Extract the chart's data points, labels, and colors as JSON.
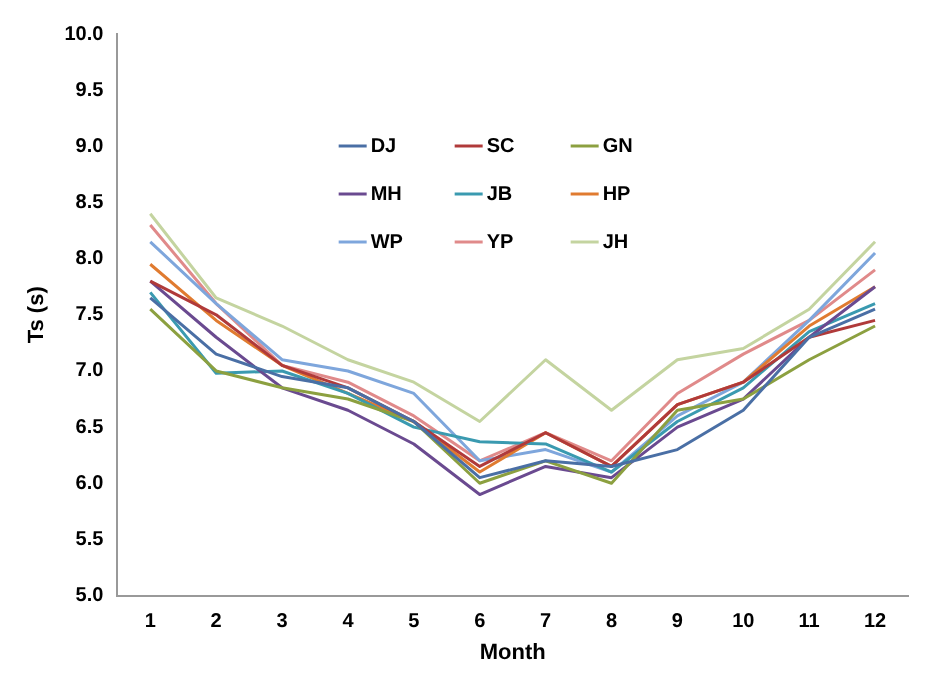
{
  "chart_data": {
    "type": "line",
    "xlabel": "Month",
    "ylabel": "Ts (s)",
    "x": [
      1,
      2,
      3,
      4,
      5,
      6,
      7,
      8,
      9,
      10,
      11,
      12
    ],
    "xlim": [
      0.5,
      12.5
    ],
    "xticks": [
      1,
      2,
      3,
      4,
      5,
      6,
      7,
      8,
      9,
      10,
      11,
      12
    ],
    "ylim": [
      5,
      10
    ],
    "yticks": [
      {
        "value": 5,
        "label": "5.0"
      },
      {
        "value": 5.5,
        "label": "5.5"
      },
      {
        "value": 6,
        "label": "6.0"
      },
      {
        "value": 6.5,
        "label": "6.5"
      },
      {
        "value": 7,
        "label": "7.0"
      },
      {
        "value": 7.5,
        "label": "7.5"
      },
      {
        "value": 8,
        "label": "8.0"
      },
      {
        "value": 8.5,
        "label": "8.5"
      },
      {
        "value": 9,
        "label": "9.0"
      },
      {
        "value": 9.5,
        "label": "9.5"
      },
      {
        "value": 10,
        "label": "10.0"
      }
    ],
    "grid": false,
    "legend": "top",
    "marker": "none",
    "line_style": "solid",
    "series": [
      {
        "name": "DJ",
        "color": "#4a6fa5",
        "values": [
          7.65,
          7.15,
          6.95,
          6.85,
          6.55,
          6.05,
          6.2,
          6.15,
          6.3,
          6.65,
          7.3,
          7.55
        ]
      },
      {
        "name": "SC",
        "color": "#b03a3a",
        "values": [
          7.8,
          7.5,
          7.05,
          6.85,
          6.55,
          6.15,
          6.45,
          6.15,
          6.7,
          6.9,
          7.3,
          7.45
        ]
      },
      {
        "name": "GN",
        "color": "#8ca040",
        "values": [
          7.55,
          7.0,
          6.85,
          6.75,
          6.55,
          6.0,
          6.2,
          6.0,
          6.65,
          6.75,
          7.1,
          7.4
        ]
      },
      {
        "name": "MH",
        "color": "#6a4a90",
        "values": [
          7.8,
          7.3,
          6.85,
          6.65,
          6.35,
          5.9,
          6.15,
          6.05,
          6.5,
          6.75,
          7.3,
          7.75
        ]
      },
      {
        "name": "JB",
        "color": "#3a9ab0",
        "values": [
          7.7,
          6.98,
          7.0,
          6.8,
          6.5,
          6.37,
          6.35,
          6.1,
          6.55,
          6.85,
          7.35,
          7.6
        ]
      },
      {
        "name": "HP",
        "color": "#e07b30",
        "values": [
          7.95,
          7.45,
          7.05,
          6.8,
          6.55,
          6.1,
          6.45,
          6.15,
          6.7,
          6.9,
          7.4,
          7.75
        ]
      },
      {
        "name": "WP",
        "color": "#7ea6dc",
        "values": [
          8.15,
          7.6,
          7.1,
          7.0,
          6.8,
          6.2,
          6.3,
          6.1,
          6.6,
          6.9,
          7.45,
          8.05
        ]
      },
      {
        "name": "YP",
        "color": "#e08a8a",
        "values": [
          8.3,
          7.6,
          7.05,
          6.9,
          6.6,
          6.2,
          6.45,
          6.2,
          6.8,
          7.15,
          7.45,
          7.9
        ]
      },
      {
        "name": "JH",
        "color": "#c4d4a0",
        "values": [
          8.4,
          7.65,
          7.4,
          7.1,
          6.9,
          6.55,
          7.1,
          6.65,
          7.1,
          7.2,
          7.55,
          8.15
        ]
      }
    ]
  }
}
